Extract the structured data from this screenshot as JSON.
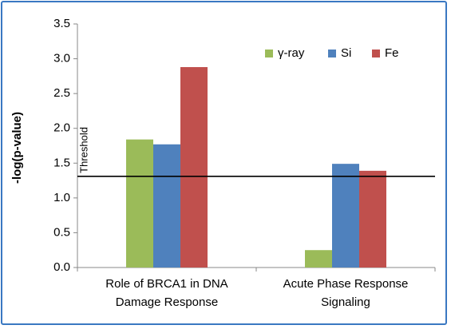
{
  "chart_data": {
    "type": "bar",
    "categories": [
      [
        "Role of BRCA1 in DNA",
        "Damage Response"
      ],
      [
        "Acute Phase Response",
        "Signaling"
      ]
    ],
    "series": [
      {
        "name": "γ-ray",
        "color": "#9bbb59",
        "values": [
          1.84,
          0.25
        ]
      },
      {
        "name": "Si",
        "color": "#4f81bd",
        "values": [
          1.77,
          1.49
        ]
      },
      {
        "name": "Fe",
        "color": "#c0504d",
        "values": [
          2.88,
          1.39
        ]
      }
    ],
    "ylabel": "-log(p-value)",
    "ylim": [
      0,
      3.5
    ],
    "yticks": [
      "0.0",
      "0.5",
      "1.0",
      "1.5",
      "2.0",
      "2.5",
      "3.0",
      "3.5"
    ],
    "threshold": {
      "value": 1.31,
      "label": "Threshold"
    },
    "legend_position": "top-right",
    "grid": false
  }
}
